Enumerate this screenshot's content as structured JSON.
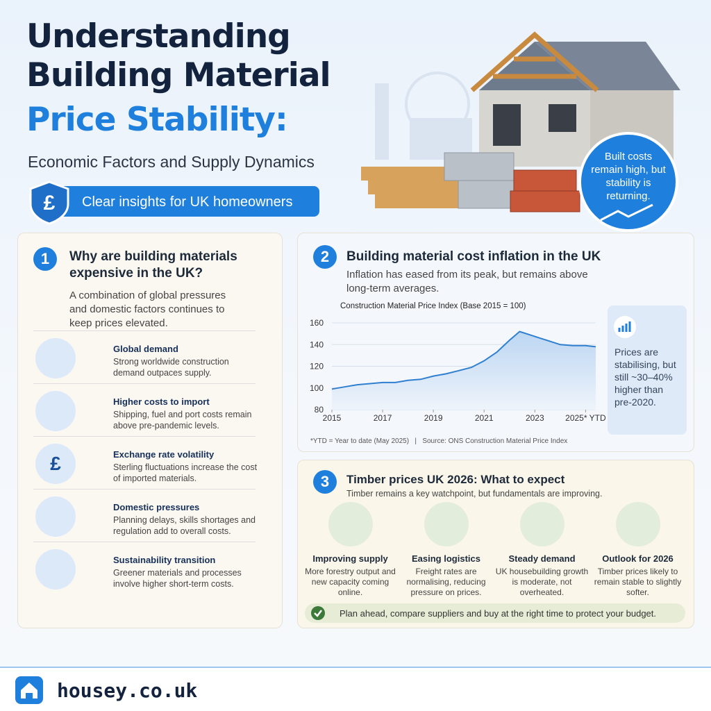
{
  "header": {
    "title_line1": "Understanding",
    "title_line2": "Building Material",
    "title_line3": "Price Stability:",
    "subtitle": "Economic Factors and Supply Dynamics",
    "badge": "Clear insights for UK homeowners",
    "badge_icon": "£",
    "callout": "Built costs remain high, but stability is returning."
  },
  "section1": {
    "number": "1",
    "title": "Why are building materials expensive in the UK?",
    "intro": "A combination of global pressures and domestic factors continues to keep prices elevated.",
    "items": [
      {
        "title": "Global demand",
        "text": "Strong worldwide construction demand outpaces supply."
      },
      {
        "title": "Higher costs to import",
        "text": "Shipping, fuel and port costs remain above pre-pandemic levels."
      },
      {
        "title": "Exchange rate volatility",
        "text": "Sterling fluctuations increase the cost of imported materials.",
        "icon": "£"
      },
      {
        "title": "Domestic pressures",
        "text": "Planning delays, skills shortages and regulation add to overall costs."
      },
      {
        "title": "Sustainability transition",
        "text": "Greener materials and processes involve higher short-term costs."
      }
    ]
  },
  "section2": {
    "number": "2",
    "title": "Building material cost inflation in the UK",
    "intro": "Inflation has eased from its peak, but remains above long-term averages.",
    "note": "Prices are stabilising, but still ~30–40% higher than pre-2020.",
    "footnote": "*YTD = Year to date (May 2025)",
    "separator": "|",
    "source": "Source: ONS Construction Material Price Index"
  },
  "chart_data": {
    "type": "line",
    "title": "Construction Material Price Index (Base 2015 = 100)",
    "color": "#2f7fd0",
    "x": [
      2015,
      2015.5,
      2016,
      2016.5,
      2017,
      2017.5,
      2018,
      2018.5,
      2019,
      2019.5,
      2020,
      2020.5,
      2021,
      2021.5,
      2022,
      2022.4,
      2022.8,
      2023.2,
      2023.6,
      2024,
      2024.5,
      2025,
      2025.4
    ],
    "values": [
      99,
      101,
      103,
      104,
      105,
      105,
      107,
      108,
      111,
      113,
      116,
      119,
      125,
      133,
      144,
      152,
      149,
      146,
      143,
      140,
      139,
      139,
      138
    ],
    "xlim": [
      2015,
      2025.4
    ],
    "xticks": [
      2015,
      2017,
      2019,
      2021,
      2023,
      {
        "value": 2025,
        "label": "2025* YTD"
      }
    ],
    "ylim": [
      80,
      160
    ],
    "yticks": [
      80,
      100,
      120,
      140,
      160
    ],
    "grid": true
  },
  "section3": {
    "number": "3",
    "title": "Timber prices UK 2026: What to expect",
    "intro": "Timber remains a key watchpoint, but fundamentals are improving.",
    "items": [
      {
        "title": "Improving supply",
        "text": "More forestry output and new capacity coming online."
      },
      {
        "title": "Easing logistics",
        "text": "Freight rates are normalising, reducing pressure on prices."
      },
      {
        "title": "Steady demand",
        "text": "UK housebuilding growth is moderate, not overheated."
      },
      {
        "title": "Outlook for 2026",
        "text": "Timber prices likely to remain stable to slightly softer."
      }
    ],
    "tip": "Plan ahead, compare suppliers and buy at the right time to protect your budget."
  },
  "footer": {
    "brand": "housey.co.uk"
  }
}
